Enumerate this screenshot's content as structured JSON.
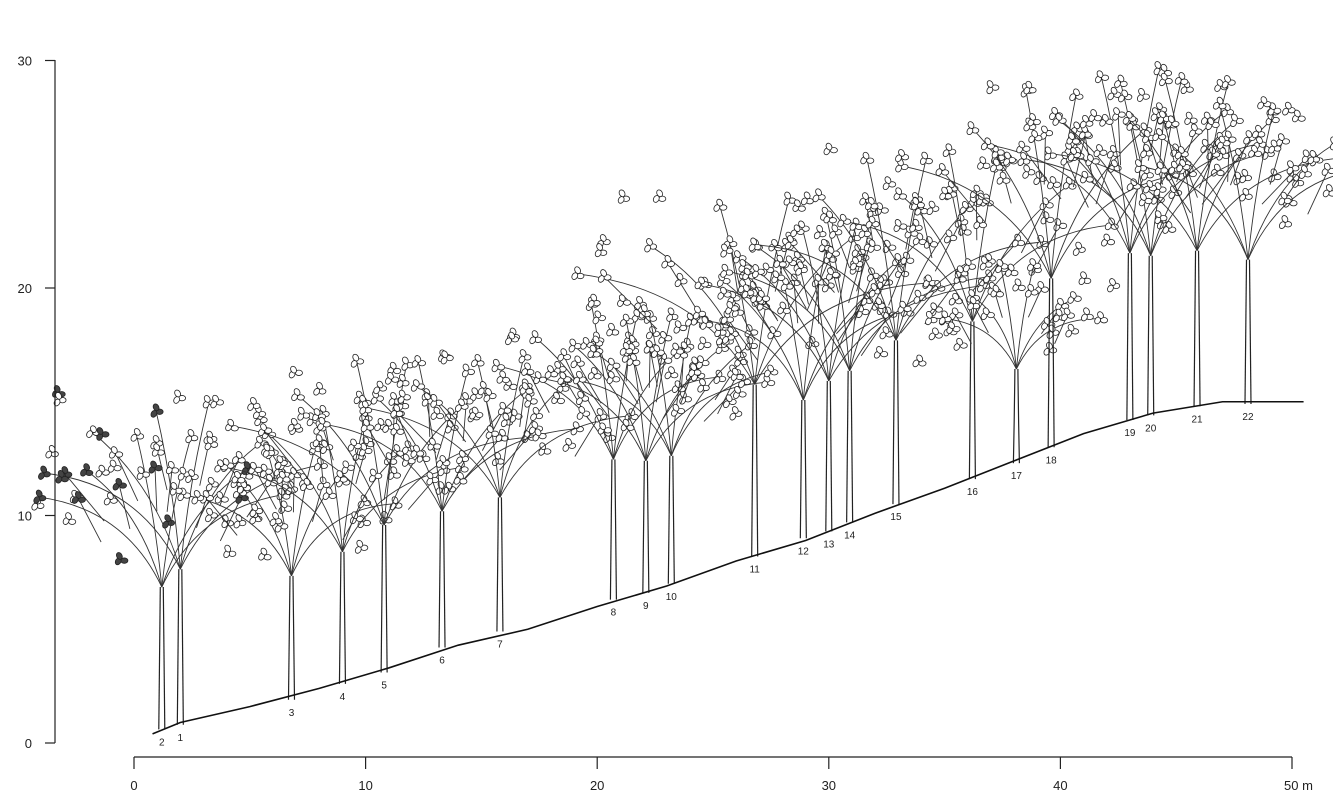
{
  "axes": {
    "y_ticks": [
      "0",
      "10",
      "20",
      "30"
    ],
    "x_ticks": [
      "0",
      "10",
      "20",
      "30",
      "40",
      "50 m"
    ]
  },
  "trees": [
    {
      "label": "1",
      "x": 2.0,
      "ground": 0.8,
      "height": 16.0,
      "dark": true
    },
    {
      "label": "2",
      "x": 1.2,
      "ground": 0.6,
      "height": 14.5,
      "dark": true
    },
    {
      "label": "3",
      "x": 6.8,
      "ground": 1.9,
      "height": 14.0
    },
    {
      "label": "4",
      "x": 9.0,
      "ground": 2.6,
      "height": 15.5
    },
    {
      "label": "5",
      "x": 10.8,
      "ground": 3.1,
      "height": 17.5
    },
    {
      "label": "6",
      "x": 13.3,
      "ground": 4.2,
      "height": 17.5
    },
    {
      "label": "7",
      "x": 15.8,
      "ground": 4.9,
      "height": 18.0
    },
    {
      "label": "8",
      "x": 20.7,
      "ground": 6.3,
      "height": 20.0
    },
    {
      "label": "9",
      "x": 22.1,
      "ground": 6.6,
      "height": 19.5
    },
    {
      "label": "10",
      "x": 23.2,
      "ground": 7.0,
      "height": 19.5
    },
    {
      "label": "11",
      "x": 26.8,
      "ground": 8.2,
      "height": 25.0
    },
    {
      "label": "12",
      "x": 28.9,
      "ground": 9.0,
      "height": 22.5
    },
    {
      "label": "13",
      "x": 30.0,
      "ground": 9.3,
      "height": 24.0
    },
    {
      "label": "14",
      "x": 30.9,
      "ground": 9.7,
      "height": 24.5
    },
    {
      "label": "15",
      "x": 32.9,
      "ground": 10.5,
      "height": 26.5
    },
    {
      "label": "16",
      "x": 36.2,
      "ground": 11.6,
      "height": 27.0
    },
    {
      "label": "17",
      "x": 38.1,
      "ground": 12.3,
      "height": 21.5
    },
    {
      "label": "18",
      "x": 39.6,
      "ground": 13.0,
      "height": 29.5
    },
    {
      "label": "19",
      "x": 43.0,
      "ground": 14.2,
      "height": 30.5
    },
    {
      "label": "20",
      "x": 43.9,
      "ground": 14.4,
      "height": 30.0
    },
    {
      "label": "21",
      "x": 45.9,
      "ground": 14.8,
      "height": 30.0
    },
    {
      "label": "22",
      "x": 48.1,
      "ground": 14.9,
      "height": 29.0
    }
  ],
  "ground_profile": [
    [
      0.8,
      0.4
    ],
    [
      2,
      0.9
    ],
    [
      5,
      1.6
    ],
    [
      8,
      2.4
    ],
    [
      11,
      3.3
    ],
    [
      14,
      4.3
    ],
    [
      17,
      5.0
    ],
    [
      20,
      6.0
    ],
    [
      23,
      6.9
    ],
    [
      26,
      8.0
    ],
    [
      29,
      8.9
    ],
    [
      32,
      10.1
    ],
    [
      35,
      11.2
    ],
    [
      38,
      12.4
    ],
    [
      41,
      13.6
    ],
    [
      44,
      14.5
    ],
    [
      47,
      15.0
    ],
    [
      50.5,
      15.0
    ]
  ]
}
